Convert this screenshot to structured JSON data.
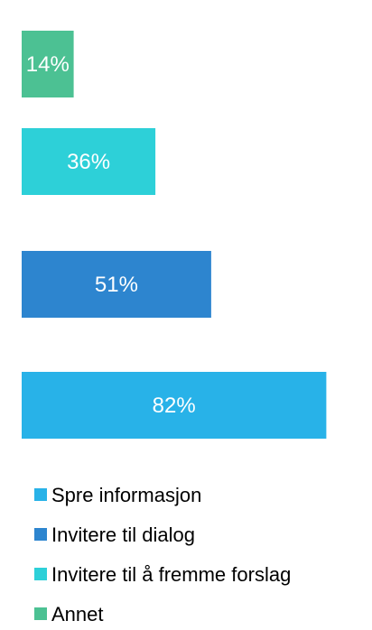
{
  "chart_data": {
    "type": "bar",
    "orientation": "horizontal",
    "series": [
      {
        "name": "Annet",
        "value": 14,
        "label": "14%",
        "color": "#4cc193"
      },
      {
        "name": "Invitere til å fremme forslag",
        "value": 36,
        "label": "36%",
        "color": "#2dd0d8"
      },
      {
        "name": "Invitere til dialog",
        "value": 51,
        "label": "51%",
        "color": "#2d85cf"
      },
      {
        "name": "Spre informasjon",
        "value": 82,
        "label": "82%",
        "color": "#28b2e8"
      }
    ],
    "legend": {
      "placement": "bottom",
      "items": [
        {
          "label": "Spre informasjon",
          "color": "#28b2e8"
        },
        {
          "label": "Invitere til dialog",
          "color": "#2d85cf"
        },
        {
          "label": "Invitere til å fremme forslag",
          "color": "#2dd0d8"
        },
        {
          "label": "Annet",
          "color": "#4cc193"
        }
      ]
    },
    "xlim": [
      0,
      100
    ],
    "grid": false,
    "title": "",
    "xlabel": "",
    "ylabel": ""
  }
}
